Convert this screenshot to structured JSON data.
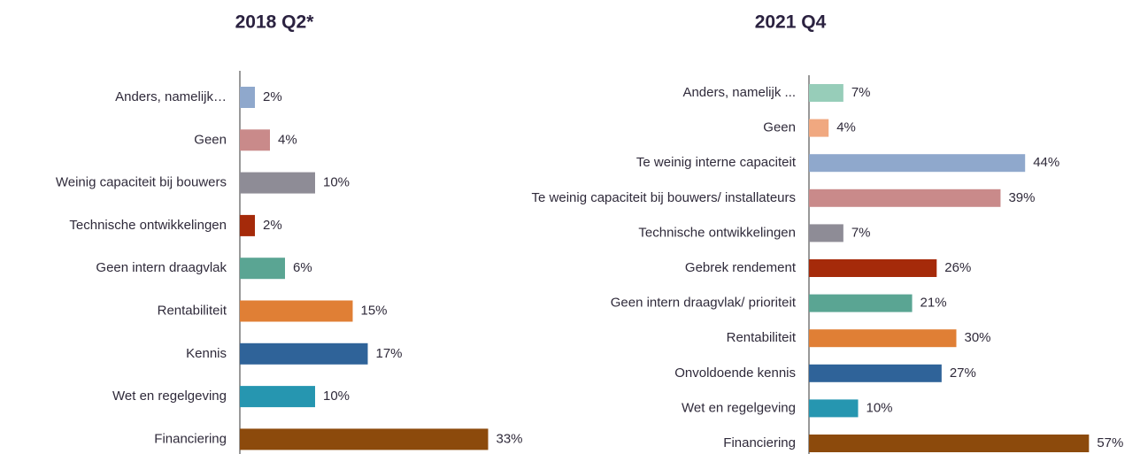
{
  "chart_data": [
    {
      "type": "bar",
      "orientation": "horizontal",
      "title": "2018 Q2*",
      "categories": [
        "Anders, namelijk…",
        "Geen",
        "Weinig capaciteit bij bouwers",
        "Technische ontwikkelingen",
        "Geen intern draagvlak",
        "Rentabiliteit",
        "Kennis",
        "Wet en regelgeving",
        "Financiering"
      ],
      "values": [
        2,
        4,
        10,
        2,
        6,
        15,
        17,
        10,
        33
      ],
      "value_labels": [
        "2%",
        "4%",
        "10%",
        "2%",
        "6%",
        "15%",
        "17%",
        "10%",
        "33%"
      ],
      "colors": [
        "#8fa8cc",
        "#c98a8a",
        "#8e8c96",
        "#a52a0a",
        "#5aa593",
        "#e07f35",
        "#2f6399",
        "#2696b0",
        "#8c4a0c"
      ]
    },
    {
      "type": "bar",
      "orientation": "horizontal",
      "title": "2021 Q4",
      "categories": [
        "Anders, namelijk ...",
        "Geen",
        "Te weinig interne capaciteit",
        "Te weinig capaciteit bij bouwers/ installateurs",
        "Technische ontwikkelingen",
        "Gebrek rendement",
        "Geen intern draagvlak/ prioriteit",
        "Rentabiliteit",
        "Onvoldoende kennis",
        "Wet en regelgeving",
        "Financiering"
      ],
      "values": [
        7,
        4,
        44,
        39,
        7,
        26,
        21,
        30,
        27,
        10,
        57
      ],
      "value_labels": [
        "7%",
        "4%",
        "44%",
        "39%",
        "7%",
        "26%",
        "21%",
        "30%",
        "27%",
        "10%",
        "57%"
      ],
      "colors": [
        "#97cdb9",
        "#f0a880",
        "#8fa8cc",
        "#c98a8a",
        "#8e8c96",
        "#a52a0a",
        "#5aa593",
        "#e07f35",
        "#2f6399",
        "#2696b0",
        "#8c4a0c"
      ]
    }
  ]
}
